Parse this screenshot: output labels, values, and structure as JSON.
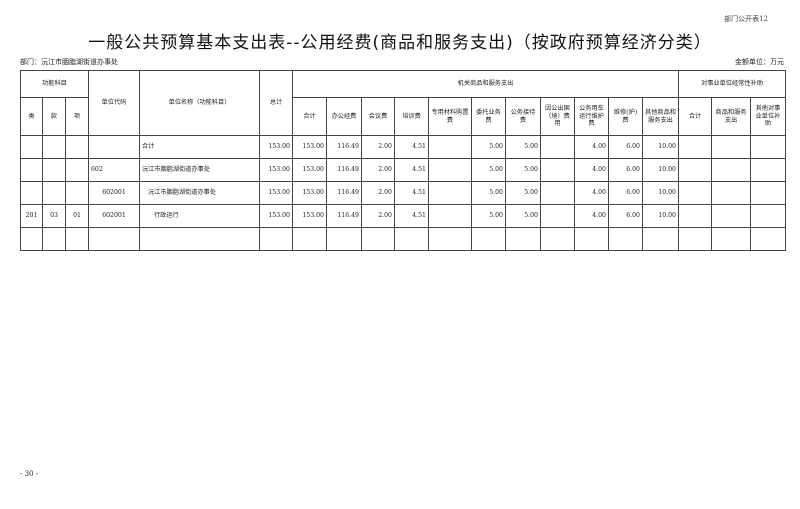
{
  "page_code": "部门公开表12",
  "title": "一般公共预算基本支出表--公用经费(商品和服务支出)（按政府预算经济分类）",
  "department": "部门：沅江市胭脂湖街道办事处",
  "unit": "金额单位：万元",
  "page_number": "- 30 -",
  "headers": {
    "func": "功能科目",
    "lei": "类",
    "kuan": "款",
    "xiang": "项",
    "code": "单位代码",
    "name": "单位名称（功能科目）",
    "total": "总计",
    "group1": "机关商品和服务支出",
    "group2": "对事业单位经常性补助",
    "g1": [
      "合计",
      "办公经费",
      "会议费",
      "培训费",
      "专用材料购置费",
      "委托业务费",
      "公务接待费",
      "因公出国（境）费用",
      "公务用车运行维护费",
      "维修(护)费",
      "其他商品和服务支出"
    ],
    "g2": [
      "合计",
      "商品和服务支出",
      "其他对事业单位补助"
    ]
  },
  "rows": [
    {
      "lei": "",
      "kuan": "",
      "xiang": "",
      "code": "",
      "name": "合计",
      "vals": [
        "153.00",
        "153.00",
        "116.49",
        "2.00",
        "4.51",
        "",
        "5.00",
        "5.00",
        "",
        "4.00",
        "6.00",
        "10.00",
        "",
        "",
        ""
      ]
    },
    {
      "lei": "",
      "kuan": "",
      "xiang": "",
      "code": "602",
      "name": "沅江市胭脂湖街道办事处",
      "vals": [
        "153.00",
        "153.00",
        "116.49",
        "2.00",
        "4.51",
        "",
        "5.00",
        "5.00",
        "",
        "4.00",
        "6.00",
        "10.00",
        "",
        "",
        ""
      ]
    },
    {
      "lei": "",
      "kuan": "",
      "xiang": "",
      "code": "602001",
      "name": "沅江市胭脂湖街道办事处",
      "vals": [
        "153.00",
        "153.00",
        "116.49",
        "2.00",
        "4.51",
        "",
        "5.00",
        "5.00",
        "",
        "4.00",
        "6.00",
        "10.00",
        "",
        "",
        ""
      ]
    },
    {
      "lei": "201",
      "kuan": "03",
      "xiang": "01",
      "code": "602001",
      "name": "行政运行",
      "vals": [
        "153.00",
        "153.00",
        "116.49",
        "2.00",
        "4.51",
        "",
        "5.00",
        "5.00",
        "",
        "4.00",
        "6.00",
        "10.00",
        "",
        "",
        ""
      ]
    },
    {
      "lei": "",
      "kuan": "",
      "xiang": "",
      "code": "",
      "name": "",
      "vals": [
        "",
        "",
        "",
        "",
        "",
        "",
        "",
        "",
        "",
        "",
        "",
        "",
        "",
        "",
        ""
      ]
    }
  ]
}
